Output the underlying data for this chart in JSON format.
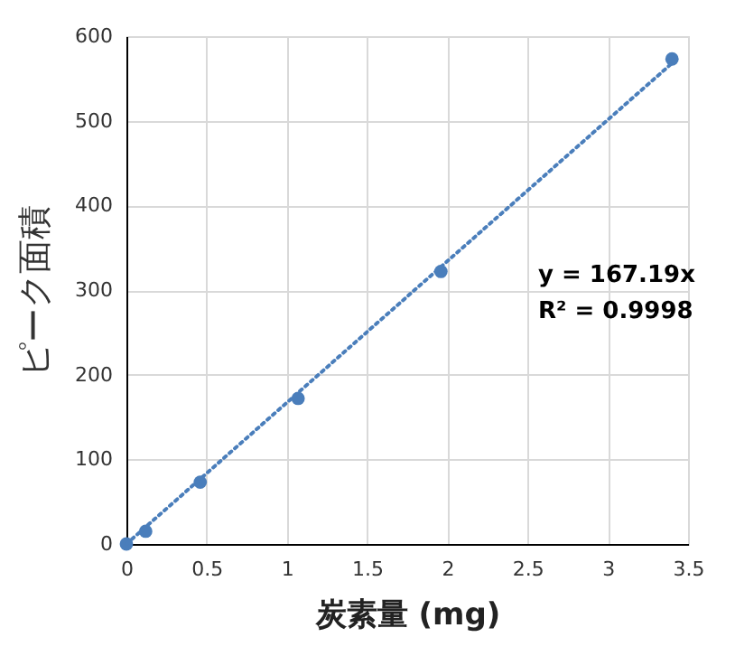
{
  "chart_data": {
    "type": "scatter",
    "xlabel": "炭素量 (mg)",
    "ylabel": "ピーク面積",
    "xlim": [
      0,
      3.5
    ],
    "xticks": [
      0,
      0.5,
      1,
      1.5,
      2,
      2.5,
      3,
      3.5
    ],
    "ylim": [
      0,
      600
    ],
    "yticks": [
      0,
      100,
      200,
      300,
      400,
      500,
      600
    ],
    "grid": true,
    "series": [
      {
        "marker": "circle",
        "color": "#4a7ebb",
        "x": [
          0,
          0.12,
          0.46,
          1.07,
          1.96,
          3.4
        ],
        "values": [
          0,
          15,
          73,
          172,
          322,
          573
        ]
      },
      {
        "type": "line",
        "color": "#4a7ebb",
        "line_style": "dotted",
        "x": [
          0,
          3.4
        ],
        "values": [
          0,
          568
        ]
      }
    ],
    "annotations": [
      "y = 167.19x",
      "R² = 0.9998"
    ]
  }
}
